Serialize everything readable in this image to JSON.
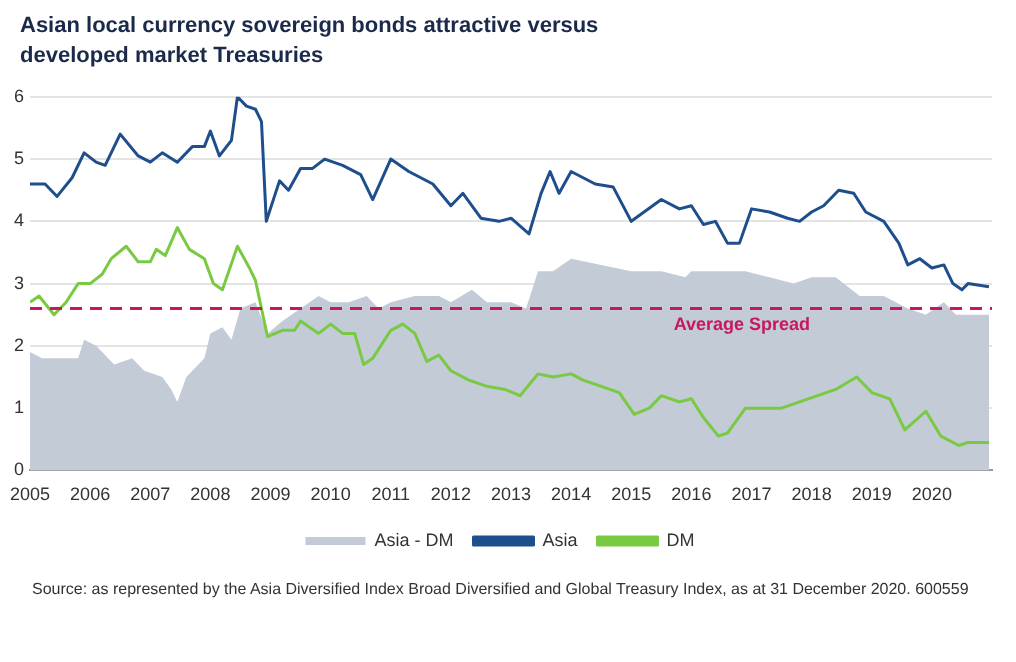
{
  "chart_data": {
    "type": "line",
    "title": "Asian local currency sovereign bonds attractive versus developed market Treasuries",
    "xlim": [
      2005,
      2021
    ],
    "xticks": [
      2005,
      2006,
      2007,
      2008,
      2009,
      2010,
      2011,
      2012,
      2013,
      2014,
      2015,
      2016,
      2017,
      2018,
      2019,
      2020
    ],
    "ylim": [
      0,
      6
    ],
    "yticks": [
      0,
      1,
      2,
      3,
      4,
      5,
      6
    ],
    "grid": "y",
    "legend": "bottom",
    "series": [
      {
        "name": "Asia - DM",
        "type": "area",
        "color": "#c2cbd6",
        "x": [
          2005.0,
          2005.2,
          2005.5,
          2005.8,
          2005.9,
          2006.1,
          2006.4,
          2006.7,
          2006.9,
          2007.2,
          2007.35,
          2007.45,
          2007.6,
          2007.9,
          2008.0,
          2008.2,
          2008.35,
          2008.5,
          2008.75,
          2008.95,
          2009.2,
          2009.5,
          2009.8,
          2010.0,
          2010.3,
          2010.6,
          2010.8,
          2011.0,
          2011.4,
          2011.8,
          2012.0,
          2012.35,
          2012.6,
          2013.0,
          2013.25,
          2013.45,
          2013.7,
          2014.0,
          2014.5,
          2015.0,
          2015.5,
          2015.9,
          2016.0,
          2016.4,
          2016.9,
          2017.3,
          2017.7,
          2018.0,
          2018.4,
          2018.8,
          2019.2,
          2019.6,
          2019.9,
          2020.2,
          2020.4,
          2020.95
        ],
        "values": [
          1.9,
          1.8,
          1.8,
          1.8,
          2.1,
          2.0,
          1.7,
          1.8,
          1.6,
          1.5,
          1.3,
          1.1,
          1.5,
          1.8,
          2.2,
          2.3,
          2.1,
          2.6,
          2.7,
          2.2,
          2.4,
          2.6,
          2.8,
          2.7,
          2.7,
          2.8,
          2.6,
          2.7,
          2.8,
          2.8,
          2.7,
          2.9,
          2.7,
          2.7,
          2.6,
          3.2,
          3.2,
          3.4,
          3.3,
          3.2,
          3.2,
          3.1,
          3.2,
          3.2,
          3.2,
          3.1,
          3.0,
          3.1,
          3.1,
          2.8,
          2.8,
          2.6,
          2.5,
          2.7,
          2.5,
          2.5
        ]
      },
      {
        "name": "Asia",
        "color": "#1f4e8c",
        "x": [
          2005.0,
          2005.25,
          2005.45,
          2005.7,
          2005.9,
          2006.1,
          2006.25,
          2006.5,
          2006.8,
          2007.0,
          2007.2,
          2007.45,
          2007.7,
          2007.9,
          2008.0,
          2008.15,
          2008.35,
          2008.45,
          2008.6,
          2008.75,
          2008.85,
          2008.93,
          2009.15,
          2009.3,
          2009.5,
          2009.7,
          2009.9,
          2010.2,
          2010.5,
          2010.7,
          2011.0,
          2011.3,
          2011.7,
          2012.0,
          2012.2,
          2012.5,
          2012.8,
          2013.0,
          2013.3,
          2013.5,
          2013.65,
          2013.8,
          2014.0,
          2014.4,
          2014.7,
          2015.0,
          2015.5,
          2015.8,
          2016.0,
          2016.2,
          2016.4,
          2016.6,
          2016.8,
          2017.0,
          2017.3,
          2017.6,
          2017.8,
          2018.0,
          2018.2,
          2018.45,
          2018.7,
          2018.9,
          2019.2,
          2019.45,
          2019.6,
          2019.8,
          2020.0,
          2020.2,
          2020.35,
          2020.5,
          2020.6,
          2020.95
        ],
        "values": [
          4.6,
          4.6,
          4.4,
          4.7,
          5.1,
          4.95,
          4.9,
          5.4,
          5.05,
          4.95,
          5.1,
          4.95,
          5.2,
          5.2,
          5.45,
          5.05,
          5.3,
          6.0,
          5.85,
          5.8,
          5.6,
          4.0,
          4.65,
          4.5,
          4.85,
          4.85,
          5.0,
          4.9,
          4.75,
          4.35,
          5.0,
          4.8,
          4.6,
          4.25,
          4.45,
          4.05,
          4.0,
          4.05,
          3.8,
          4.45,
          4.8,
          4.45,
          4.8,
          4.6,
          4.55,
          4.0,
          4.35,
          4.2,
          4.25,
          3.95,
          4.0,
          3.65,
          3.65,
          4.2,
          4.15,
          4.05,
          4.0,
          4.15,
          4.25,
          4.5,
          4.45,
          4.15,
          4.0,
          3.65,
          3.3,
          3.4,
          3.25,
          3.3,
          3.0,
          2.9,
          3.0,
          2.95
        ]
      },
      {
        "name": "DM",
        "color": "#7ac943",
        "x": [
          2005.0,
          2005.15,
          2005.4,
          2005.6,
          2005.8,
          2006.0,
          2006.2,
          2006.35,
          2006.6,
          2006.8,
          2007.0,
          2007.1,
          2007.25,
          2007.45,
          2007.65,
          2007.9,
          2008.05,
          2008.2,
          2008.45,
          2008.65,
          2008.75,
          2008.95,
          2009.2,
          2009.4,
          2009.5,
          2009.8,
          2010.0,
          2010.2,
          2010.4,
          2010.55,
          2010.7,
          2011.0,
          2011.2,
          2011.4,
          2011.6,
          2011.8,
          2012.0,
          2012.3,
          2012.6,
          2012.9,
          2013.15,
          2013.45,
          2013.7,
          2014.0,
          2014.2,
          2014.5,
          2014.8,
          2015.05,
          2015.3,
          2015.5,
          2015.8,
          2016.0,
          2016.2,
          2016.45,
          2016.6,
          2016.9,
          2017.2,
          2017.5,
          2017.8,
          2018.1,
          2018.4,
          2018.75,
          2019.0,
          2019.3,
          2019.55,
          2019.9,
          2020.15,
          2020.45,
          2020.6,
          2020.95
        ],
        "values": [
          2.7,
          2.8,
          2.5,
          2.7,
          3.0,
          3.0,
          3.15,
          3.4,
          3.6,
          3.35,
          3.35,
          3.55,
          3.45,
          3.9,
          3.55,
          3.4,
          3.0,
          2.9,
          3.6,
          3.25,
          3.05,
          2.15,
          2.25,
          2.25,
          2.4,
          2.2,
          2.35,
          2.2,
          2.2,
          1.7,
          1.8,
          2.25,
          2.35,
          2.2,
          1.75,
          1.85,
          1.6,
          1.45,
          1.35,
          1.3,
          1.2,
          1.55,
          1.5,
          1.55,
          1.45,
          1.35,
          1.25,
          0.9,
          1.0,
          1.2,
          1.1,
          1.15,
          0.85,
          0.55,
          0.6,
          1.0,
          1.0,
          1.0,
          1.1,
          1.2,
          1.3,
          1.5,
          1.25,
          1.15,
          0.65,
          0.95,
          0.55,
          0.4,
          0.45,
          0.45
        ]
      }
    ],
    "ref_lines": [
      {
        "axis": "y",
        "value": 2.6,
        "label": "Average Spread",
        "color": "#c8175d",
        "line_style": "dashed"
      }
    ],
    "annotations": [
      "Source: as represented by the Asia Diversified Index Broad Diversified and Global Treasury Index, as at 31 December 2020. 600559"
    ]
  }
}
